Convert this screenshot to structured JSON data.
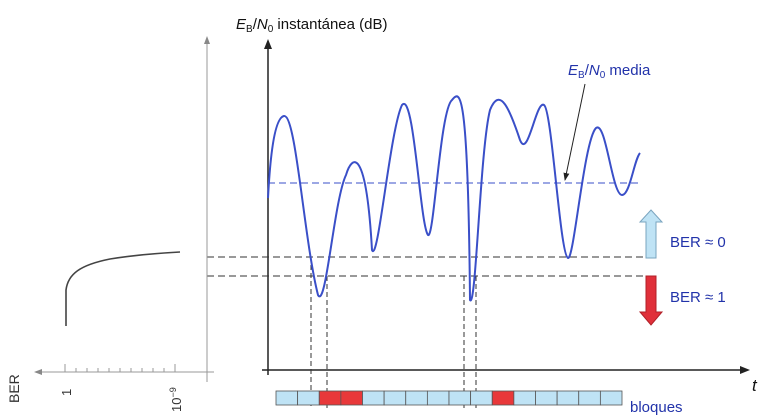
{
  "y_axis_label": {
    "e": "E",
    "b": "B",
    "slash": "/",
    "n": "N",
    "zero": "0",
    "rest": " instantánea (dB)"
  },
  "mean_label": {
    "e": "E",
    "b": "B",
    "slash": "/",
    "n": "N",
    "zero": "0",
    "rest": " media"
  },
  "ber_zero_label": "BER ≈ 0",
  "ber_one_label": "BER ≈ 1",
  "time_label": "t",
  "blocks_label": "bloques",
  "ber_axis_label": "BER",
  "ber_tick_left": "1",
  "ber_tick_right_base": "10",
  "ber_tick_right_exp": "−9",
  "colors": {
    "curve": "#3a4fc8",
    "text_blue": "#2233aa",
    "block_fill": "#bfe3f5",
    "block_error": "#e8383a",
    "arrow_up": "#bfe3f5",
    "arrow_down": "#e0303a"
  },
  "blocks": {
    "count": 16,
    "error_blocks": [
      2,
      3,
      10
    ]
  }
}
